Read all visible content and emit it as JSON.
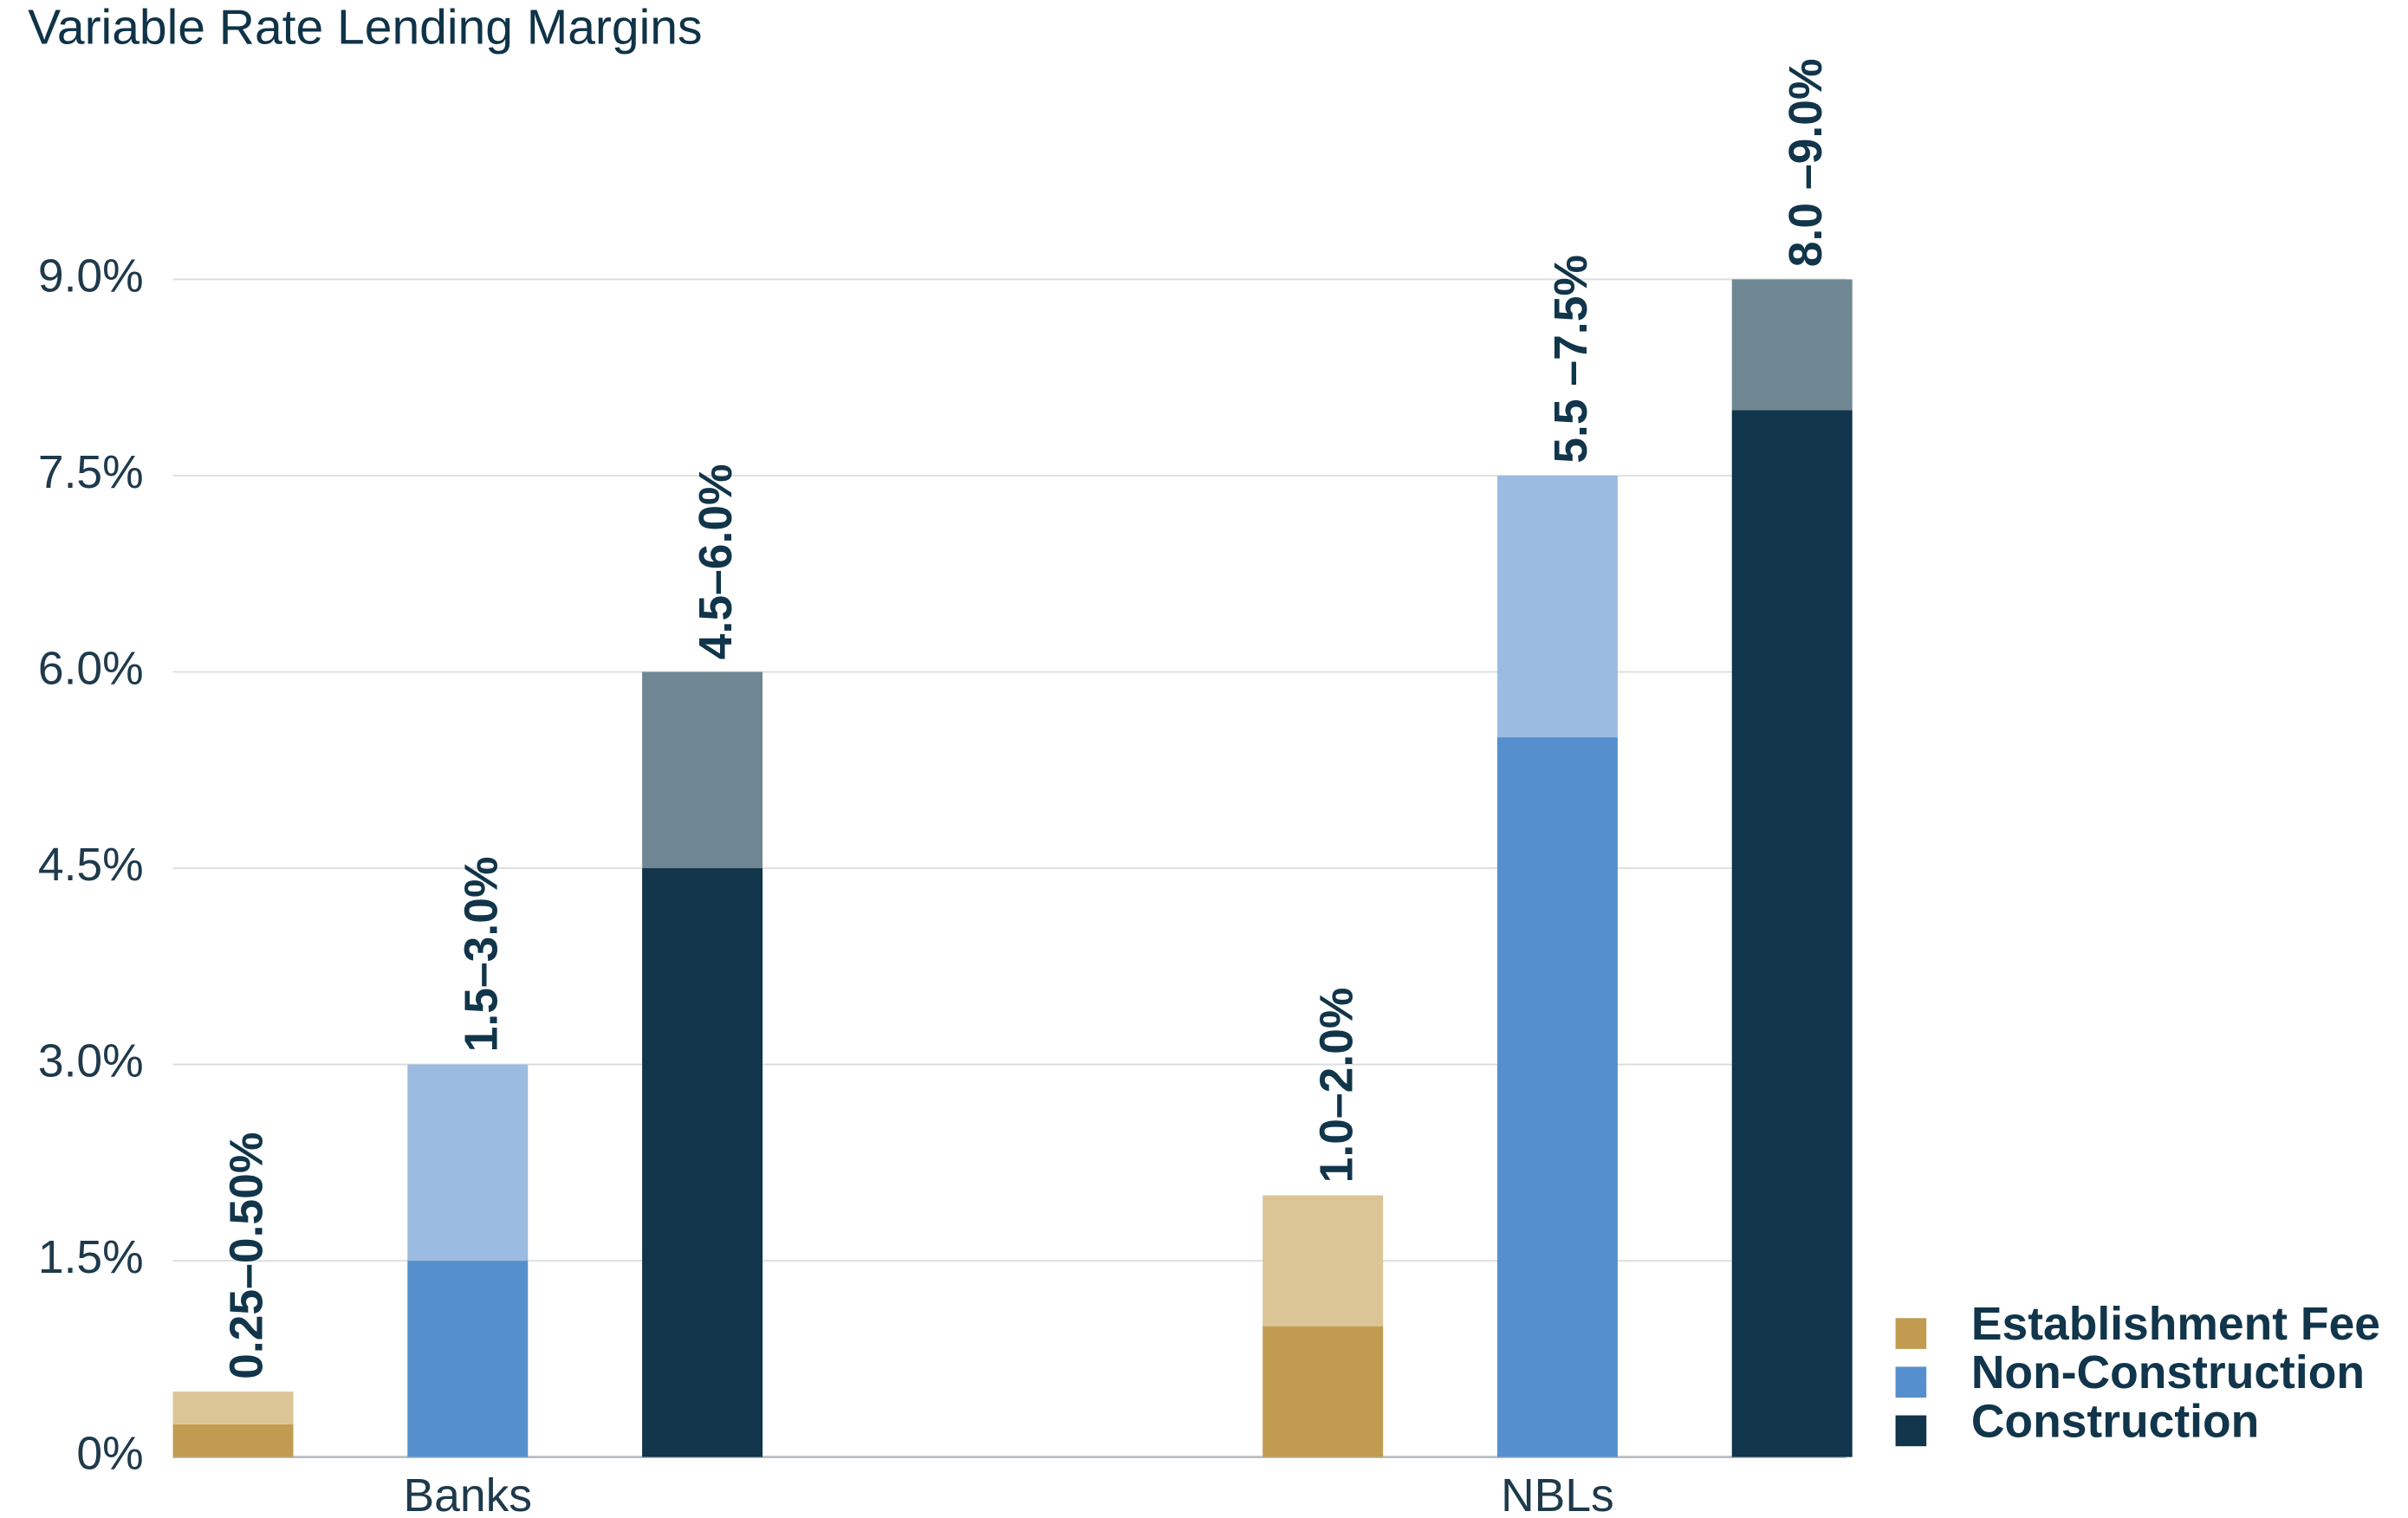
{
  "chart_data": {
    "type": "range-bar",
    "title": "Variable Rate Lending Margins",
    "categories": [
      "Banks",
      "NBLs"
    ],
    "series": [
      {
        "name": "Establishment Fee",
        "color": "#c19c50",
        "range_color": "#dbc495",
        "low": [
          0.25,
          1.0
        ],
        "high": [
          0.5,
          2.0
        ],
        "value_labels": [
          "0.25–0.50%",
          "1.0–2.0%"
        ]
      },
      {
        "name": "Non-Construction",
        "color": "#568fcd",
        "range_color": "#9bbce0",
        "low": [
          1.5,
          5.5
        ],
        "high": [
          3.0,
          7.5
        ],
        "value_labels": [
          "1.5–3.0%",
          "5.5 –7.5%"
        ]
      },
      {
        "name": "Construction",
        "color": "#11354a",
        "range_color": "#6f8793",
        "low": [
          4.5,
          8.0
        ],
        "high": [
          6.0,
          9.0
        ],
        "value_labels": [
          "4.5–6.0%",
          "8.0 –9.0%"
        ]
      }
    ],
    "ylim": [
      0,
      9
    ],
    "yticks": [
      {
        "value": 0,
        "label": "0%"
      },
      {
        "value": 1.5,
        "label": "1.5%"
      },
      {
        "value": 3,
        "label": "3.0%"
      },
      {
        "value": 4.5,
        "label": "4.5%"
      },
      {
        "value": 6,
        "label": "6.0%"
      },
      {
        "value": 7.5,
        "label": "7.5%"
      },
      {
        "value": 9,
        "label": "9.0%"
      }
    ],
    "grid": true,
    "legend": "lower right"
  }
}
